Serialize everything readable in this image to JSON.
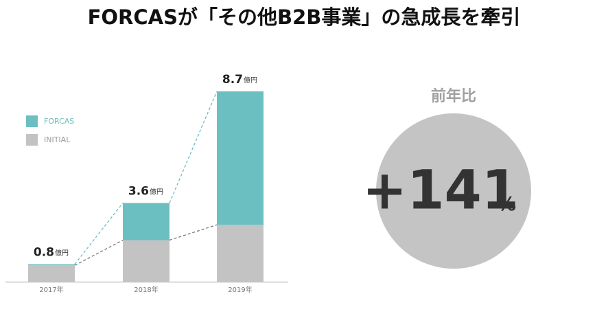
{
  "chart_data": {
    "type": "stacked_bar",
    "title": "FORCASが「その他B2B事業」の急成長を牽引",
    "categories": [
      "2017年",
      "2018年",
      "2019年"
    ],
    "series": [
      {
        "name": "FORCAS",
        "color": "#6cbfc1",
        "values": [
          0.05,
          1.7,
          6.1
        ]
      },
      {
        "name": "INITIAL",
        "color": "#c3c3c3",
        "values": [
          0.75,
          1.9,
          2.6
        ]
      }
    ],
    "totals": [
      0.8,
      3.6,
      8.7
    ],
    "total_unit": "億円"
  },
  "callout": {
    "label": "前年比",
    "value": "+141",
    "unit": "%"
  }
}
